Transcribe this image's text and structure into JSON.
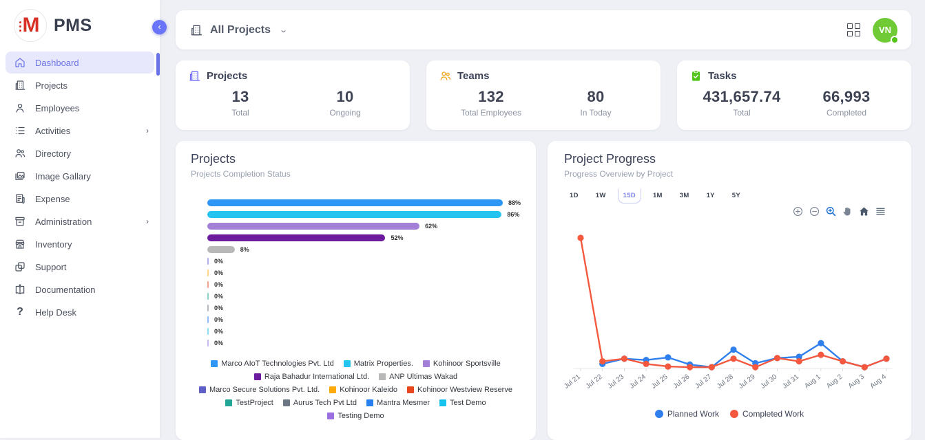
{
  "app": {
    "name": "PMS"
  },
  "sidebar": {
    "items": [
      {
        "label": "Dashboard",
        "active": true
      },
      {
        "label": "Projects"
      },
      {
        "label": "Employees"
      },
      {
        "label": "Activities",
        "expandable": true
      },
      {
        "label": "Directory"
      },
      {
        "label": "Image Gallary"
      },
      {
        "label": "Expense"
      },
      {
        "label": "Administration",
        "expandable": true
      },
      {
        "label": "Inventory"
      },
      {
        "label": "Support"
      },
      {
        "label": "Documentation"
      },
      {
        "label": "Help Desk"
      }
    ]
  },
  "topbar": {
    "project_filter": "All Projects",
    "avatar_initials": "VN"
  },
  "stats": [
    {
      "title": "Projects",
      "icon": "building-icon",
      "accent": "#6f6af8",
      "metrics": [
        {
          "value": "13",
          "label": "Total"
        },
        {
          "value": "10",
          "label": "Ongoing"
        }
      ]
    },
    {
      "title": "Teams",
      "icon": "people-icon",
      "accent": "#f0ad2d",
      "metrics": [
        {
          "value": "132",
          "label": "Total Employees"
        },
        {
          "value": "80",
          "label": "In Today"
        }
      ]
    },
    {
      "title": "Tasks",
      "icon": "clipboard-check-icon",
      "accent": "#52c41a",
      "metrics": [
        {
          "value": "431,657.74",
          "label": "Total"
        },
        {
          "value": "66,993",
          "label": "Completed"
        }
      ]
    }
  ],
  "projects_card": {
    "title": "Projects",
    "subtitle": "Projects Completion Status"
  },
  "progress_card": {
    "title": "Project Progress",
    "subtitle": "Progress Overview by Project",
    "ranges": [
      "1D",
      "1W",
      "15D",
      "1M",
      "3M",
      "1Y",
      "5Y"
    ],
    "selected_range": "15D",
    "toolbar_icons": [
      "zoom-in-icon",
      "zoom-out-icon",
      "zoom-select-icon",
      "pan-icon",
      "home-icon",
      "menu-icon"
    ]
  },
  "chart_data": [
    {
      "type": "bar",
      "orientation": "horizontal",
      "title": "Projects Completion Status",
      "unit": "%",
      "items": [
        {
          "name": "Marco AIoT Technologies Pvt. Ltd",
          "value": 88,
          "color": "#2e96f5"
        },
        {
          "name": "Matrix Properties.",
          "value": 86,
          "color": "#24c3f0"
        },
        {
          "name": "Kohinoor Sportsville",
          "value": 62,
          "color": "#a47fd8"
        },
        {
          "name": "Raja Bahadur International Ltd.",
          "value": 52,
          "color": "#6d1b9e"
        },
        {
          "name": "ANP Ultimas Wakad",
          "value": 8,
          "color": "#b8b8b8"
        },
        {
          "name": "Marco Secure Solutions Pvt. Ltd.",
          "value": 0,
          "color": "#5e60c7"
        },
        {
          "name": "Kohinoor Kaleido",
          "value": 0,
          "color": "#fdaa0d"
        },
        {
          "name": "Kohinoor Westview Reserve",
          "value": 0,
          "color": "#e8461c"
        },
        {
          "name": "TestProject",
          "value": 0,
          "color": "#20a694"
        },
        {
          "name": "Aurus Tech Pvt Ltd",
          "value": 0,
          "color": "#6b7785"
        },
        {
          "name": "Mantra Mesmer",
          "value": 0,
          "color": "#2680f0"
        },
        {
          "name": "Test Demo",
          "value": 0,
          "color": "#17c2ec"
        },
        {
          "name": "Testing Demo",
          "value": 0,
          "color": "#9c6fe0"
        }
      ]
    },
    {
      "type": "line",
      "title": "Progress Overview by Project",
      "x": [
        "Jul 21",
        "Jul 22",
        "Jul 23",
        "Jul 24",
        "Jul 25",
        "Jul 26",
        "Jul 27",
        "Jul 28",
        "Jul 29",
        "Jul 30",
        "Jul 31",
        "Aug 1",
        "Aug 2",
        "Aug 3",
        "Aug 4"
      ],
      "series": [
        {
          "name": "Planned Work",
          "color": "#2f80ed",
          "values": [
            null,
            3,
            7,
            6,
            8,
            2.5,
            0.5,
            14,
            3.5,
            7.5,
            8.5,
            19,
            5,
            0.5,
            7
          ]
        },
        {
          "name": "Completed Work",
          "color": "#f4593f",
          "values": [
            100,
            5,
            7,
            3,
            1,
            0.5,
            0.5,
            7,
            0.5,
            7.5,
            5,
            10,
            5,
            0.5,
            7
          ]
        }
      ],
      "ylim": [
        0,
        105
      ],
      "grid": false,
      "legend_position": "bottom"
    }
  ]
}
